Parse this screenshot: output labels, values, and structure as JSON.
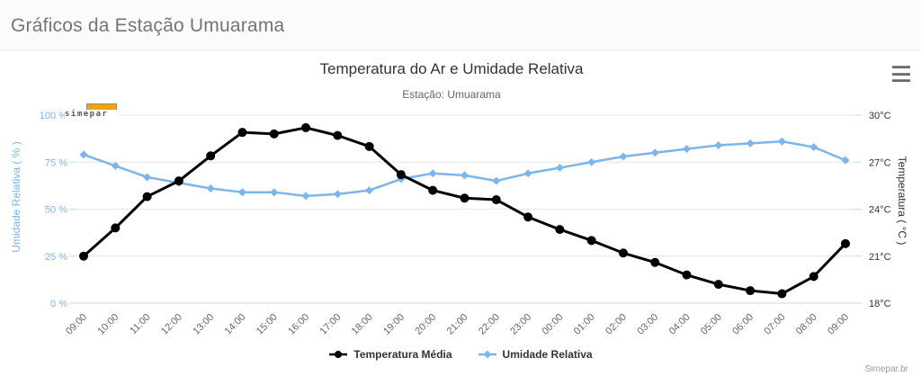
{
  "page": {
    "title": "Gráficos da Estação Umuarama"
  },
  "chart": {
    "title": "Temperatura do Ar e Umidade Relativa",
    "subtitle": "Estação: Umuarama",
    "credits": "Simepar.br",
    "logo_text": "simepar",
    "menu_icon": "hamburger-icon",
    "colors": {
      "humidity_blue": "#7cb5ec",
      "temperature_black": "#000000",
      "logo_orange": "#f0a30a",
      "gridline": "#e6e6e6",
      "axis_line": "#ccd6eb",
      "x_label": "#666666",
      "right_label": "#333333",
      "header_title": "#757575"
    }
  },
  "chart_data": {
    "type": "line",
    "title": "Temperatura do Ar e Umidade Relativa",
    "subtitle": "Estação: Umuarama",
    "grid": true,
    "legend_position": "bottom",
    "categories": [
      "09:00",
      "10:00",
      "11:00",
      "12:00",
      "13:00",
      "14:00",
      "15:00",
      "16:00",
      "17:00",
      "18:00",
      "19:00",
      "20:00",
      "21:00",
      "22:00",
      "23:00",
      "00:00",
      "01:00",
      "02:00",
      "03:00",
      "04:00",
      "05:00",
      "06:00",
      "07:00",
      "08:00",
      "09:00"
    ],
    "series": [
      {
        "name": "Temperatura Média",
        "axis": "right",
        "color": "#000000",
        "marker": "circle",
        "values": [
          21.0,
          22.8,
          24.8,
          25.8,
          27.4,
          28.9,
          28.8,
          29.2,
          28.7,
          28.0,
          26.2,
          25.2,
          24.7,
          24.6,
          23.5,
          22.7,
          22.0,
          21.2,
          20.6,
          19.8,
          19.2,
          18.8,
          18.6,
          19.7,
          21.8
        ]
      },
      {
        "name": "Umidade Relativa",
        "axis": "left",
        "color": "#7cb5ec",
        "marker": "diamond",
        "values": [
          79,
          73,
          67,
          64,
          61,
          59,
          59,
          57,
          58,
          60,
          66,
          69,
          68,
          65,
          69,
          72,
          75,
          78,
          80,
          82,
          84,
          85,
          86,
          83,
          76
        ]
      }
    ],
    "y_left": {
      "title": "Umidade Relativa ( % )",
      "min": 0,
      "max": 100,
      "tick_values": [
        0,
        25,
        50,
        75,
        100
      ],
      "tick_labels": [
        "0 %",
        "25 %",
        "50 %",
        "75 %",
        "100 %"
      ]
    },
    "y_right": {
      "title": "Temperatura ( °C )",
      "min": 18,
      "max": 30,
      "tick_values": [
        18,
        21,
        24,
        27,
        30
      ],
      "tick_labels": [
        "18°C",
        "21°C",
        "24°C",
        "27°C",
        "30°C"
      ]
    }
  }
}
